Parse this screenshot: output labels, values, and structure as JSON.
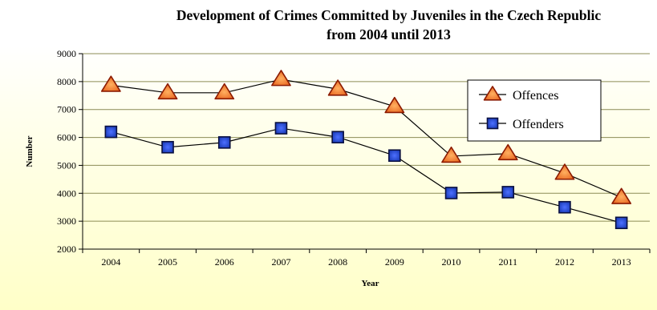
{
  "chart_data": {
    "type": "line",
    "title_line1": "Development of Crimes Committed by Juveniles in the Czech Republic",
    "title_line2": "from 2004 until 2013",
    "xlabel": "Year",
    "ylabel": "Number",
    "categories": [
      "2004",
      "2005",
      "2006",
      "2007",
      "2008",
      "2009",
      "2010",
      "2011",
      "2012",
      "2013"
    ],
    "ylim": [
      2000,
      9000
    ],
    "yticks": [
      2000,
      3000,
      4000,
      5000,
      6000,
      7000,
      8000,
      9000
    ],
    "grid": true,
    "legend_position": "top-right",
    "series": [
      {
        "name": "Offences",
        "marker": "triangle",
        "values": [
          7870,
          7600,
          7600,
          8080,
          7730,
          7110,
          5330,
          5420,
          4720,
          3850
        ]
      },
      {
        "name": "Offenders",
        "marker": "square",
        "values": [
          6200,
          5650,
          5820,
          6330,
          6010,
          5350,
          4010,
          4040,
          3500,
          2940
        ]
      }
    ],
    "colors": {
      "background_top": "#ffffff",
      "background_bottom": "#ffffc8",
      "gridline": "#8c8c56",
      "triangle_fill": "#e8641e",
      "triangle_edge": "#8b1a00",
      "square_fill": "#1a3bb8",
      "square_edge": "#0a1040",
      "line": "#000000"
    }
  }
}
